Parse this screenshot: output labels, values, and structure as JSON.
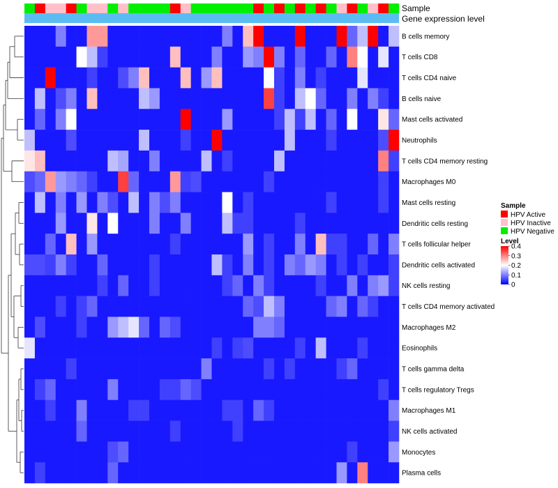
{
  "chart_data": {
    "type": "heatmap",
    "annotation_titles": [
      "Sample",
      "Gene expression level"
    ],
    "legend": {
      "sample": {
        "title": "Sample",
        "entries": [
          {
            "label": "HPV Active",
            "color": "#ff0000"
          },
          {
            "label": "HPV Inactive",
            "color": "#ffc0cb"
          },
          {
            "label": "HPV Negative",
            "color": "#00ee00"
          }
        ]
      },
      "level": {
        "title": "Level",
        "ticks": [
          "0.4",
          "0.3",
          "0.2",
          "0.1",
          "0"
        ],
        "tick_values": [
          0.4,
          0.3,
          0.2,
          0.1,
          0
        ],
        "range": [
          0,
          0.4
        ],
        "colors": [
          "#0000ff",
          "#ffffff",
          "#ff0000"
        ],
        "mid": 0.2
      }
    },
    "gene_expression_color": "#5bbcf2",
    "columns": 36,
    "sample_groups": [
      "HPV Negative",
      "HPV Active",
      "HPV Inactive",
      "HPV Inactive",
      "HPV Active",
      "HPV Negative",
      "HPV Inactive",
      "HPV Inactive",
      "HPV Negative",
      "HPV Inactive",
      "HPV Negative",
      "HPV Negative",
      "HPV Negative",
      "HPV Negative",
      "HPV Active",
      "HPV Inactive",
      "HPV Negative",
      "HPV Negative",
      "HPV Negative",
      "HPV Negative",
      "HPV Negative",
      "HPV Negative",
      "HPV Active",
      "HPV Negative",
      "HPV Active",
      "HPV Negative",
      "HPV Active",
      "HPV Negative",
      "HPV Active",
      "HPV Negative",
      "HPV Inactive",
      "HPV Active",
      "HPV Negative",
      "HPV Inactive",
      "HPV Active",
      "HPV Negative"
    ],
    "rows": [
      {
        "label": "B cells memory",
        "values": [
          0.02,
          0.02,
          0.02,
          0.1,
          0.02,
          0.02,
          0.28,
          0.28,
          0.02,
          0.02,
          0.02,
          0.02,
          0.02,
          0.02,
          0.02,
          0.02,
          0.02,
          0.02,
          0.02,
          0.1,
          0.02,
          0.25,
          0.4,
          0.02,
          0.02,
          0.02,
          0.4,
          0.02,
          0.02,
          0.02,
          0.4,
          0.08,
          0.15,
          0.4,
          0.02,
          0.15
        ]
      },
      {
        "label": "T cells CD8",
        "values": [
          0.02,
          0.02,
          0.02,
          0.02,
          0.02,
          0.2,
          0.15,
          0.05,
          0.02,
          0.02,
          0.02,
          0.02,
          0.02,
          0.02,
          0.25,
          0.02,
          0.02,
          0.02,
          0.1,
          0.02,
          0.02,
          0.12,
          0.1,
          0.4,
          0.1,
          0.02,
          0.08,
          0.02,
          0.02,
          0.08,
          0.02,
          0.3,
          0.2,
          0.02,
          0.18,
          0.02
        ]
      },
      {
        "label": "T cells CD4 naive",
        "values": [
          0.02,
          0.02,
          0.4,
          0.02,
          0.02,
          0.02,
          0.05,
          0.02,
          0.02,
          0.06,
          0.1,
          0.25,
          0.02,
          0.02,
          0.02,
          0.25,
          0.02,
          0.12,
          0.25,
          0.02,
          0.02,
          0.02,
          0.02,
          0.2,
          0.05,
          0.02,
          0.1,
          0.02,
          0.05,
          0.02,
          0.02,
          0.02,
          0.18,
          0.02,
          0.02,
          0.02
        ]
      },
      {
        "label": "B cells naive",
        "values": [
          0.02,
          0.15,
          0.02,
          0.06,
          0.1,
          0.02,
          0.25,
          0.02,
          0.02,
          0.02,
          0.02,
          0.15,
          0.12,
          0.02,
          0.02,
          0.02,
          0.02,
          0.02,
          0.02,
          0.02,
          0.02,
          0.02,
          0.02,
          0.35,
          0.05,
          0.02,
          0.15,
          0.2,
          0.08,
          0.02,
          0.02,
          0.1,
          0.02,
          0.1,
          0.05,
          0.02
        ]
      },
      {
        "label": "Mast cells activated",
        "values": [
          0.02,
          0.08,
          0.02,
          0.1,
          0.2,
          0.02,
          0.02,
          0.02,
          0.02,
          0.02,
          0.02,
          0.02,
          0.02,
          0.02,
          0.02,
          0.4,
          0.02,
          0.02,
          0.02,
          0.12,
          0.02,
          0.02,
          0.02,
          0.02,
          0.05,
          0.15,
          0.05,
          0.15,
          0.02,
          0.08,
          0.02,
          0.2,
          0.02,
          0.02,
          0.22,
          0.08
        ]
      },
      {
        "label": "Neutrophils",
        "values": [
          0.15,
          0.02,
          0.02,
          0.02,
          0.06,
          0.02,
          0.02,
          0.02,
          0.02,
          0.02,
          0.02,
          0.15,
          0.02,
          0.02,
          0.02,
          0.05,
          0.02,
          0.02,
          0.4,
          0.02,
          0.02,
          0.02,
          0.02,
          0.02,
          0.02,
          0.15,
          0.02,
          0.02,
          0.02,
          0.05,
          0.02,
          0.02,
          0.02,
          0.02,
          0.06,
          0.4
        ]
      },
      {
        "label": "T cells CD4 memory resting",
        "values": [
          0.22,
          0.25,
          0.02,
          0.02,
          0.02,
          0.02,
          0.02,
          0.02,
          0.15,
          0.13,
          0.02,
          0.02,
          0.1,
          0.02,
          0.02,
          0.02,
          0.02,
          0.15,
          0.02,
          0.05,
          0.02,
          0.02,
          0.02,
          0.02,
          0.15,
          0.02,
          0.02,
          0.02,
          0.02,
          0.02,
          0.02,
          0.02,
          0.02,
          0.02,
          0.3,
          0.05
        ]
      },
      {
        "label": "Macrophages M0",
        "values": [
          0.06,
          0.08,
          0.28,
          0.12,
          0.1,
          0.08,
          0.05,
          0.02,
          0.02,
          0.35,
          0.08,
          0.02,
          0.02,
          0.02,
          0.28,
          0.05,
          0.06,
          0.02,
          0.02,
          0.02,
          0.02,
          0.02,
          0.02,
          0.05,
          0.02,
          0.02,
          0.02,
          0.02,
          0.02,
          0.02,
          0.02,
          0.02,
          0.02,
          0.02,
          0.05,
          0.02
        ]
      },
      {
        "label": "Mast cells resting",
        "values": [
          0.02,
          0.15,
          0.02,
          0.1,
          0.02,
          0.12,
          0.02,
          0.1,
          0.06,
          0.02,
          0.15,
          0.02,
          0.1,
          0.06,
          0.1,
          0.02,
          0.02,
          0.02,
          0.02,
          0.2,
          0.02,
          0.05,
          0.02,
          0.02,
          0.02,
          0.02,
          0.02,
          0.02,
          0.02,
          0.05,
          0.02,
          0.02,
          0.02,
          0.02,
          0.05,
          0.02
        ]
      },
      {
        "label": "Dendritic cells resting",
        "values": [
          0.02,
          0.02,
          0.02,
          0.12,
          0.02,
          0.02,
          0.22,
          0.02,
          0.2,
          0.02,
          0.02,
          0.02,
          0.1,
          0.02,
          0.02,
          0.1,
          0.02,
          0.02,
          0.02,
          0.15,
          0.05,
          0.05,
          0.02,
          0.02,
          0.02,
          0.02,
          0.05,
          0.02,
          0.02,
          0.02,
          0.02,
          0.02,
          0.02,
          0.02,
          0.02,
          0.02
        ]
      },
      {
        "label": "T cells follicular helper",
        "values": [
          0.02,
          0.02,
          0.08,
          0.02,
          0.25,
          0.02,
          0.12,
          0.02,
          0.02,
          0.02,
          0.02,
          0.02,
          0.02,
          0.02,
          0.05,
          0.02,
          0.02,
          0.02,
          0.02,
          0.02,
          0.02,
          0.12,
          0.02,
          0.05,
          0.02,
          0.02,
          0.1,
          0.02,
          0.25,
          0.05,
          0.05,
          0.02,
          0.02,
          0.08,
          0.02,
          0.1
        ]
      },
      {
        "label": "Dendritic cells activated",
        "values": [
          0.06,
          0.06,
          0.05,
          0.1,
          0.05,
          0.02,
          0.02,
          0.08,
          0.02,
          0.02,
          0.02,
          0.02,
          0.05,
          0.02,
          0.02,
          0.02,
          0.02,
          0.02,
          0.15,
          0.05,
          0.02,
          0.1,
          0.02,
          0.05,
          0.02,
          0.1,
          0.08,
          0.12,
          0.1,
          0.02,
          0.05,
          0.02,
          0.05,
          0.02,
          0.02,
          0.05
        ]
      },
      {
        "label": "NK cells resting",
        "values": [
          0.02,
          0.02,
          0.02,
          0.02,
          0.02,
          0.02,
          0.02,
          0.05,
          0.02,
          0.08,
          0.02,
          0.02,
          0.05,
          0.02,
          0.02,
          0.02,
          0.02,
          0.02,
          0.02,
          0.05,
          0.08,
          0.02,
          0.1,
          0.05,
          0.02,
          0.02,
          0.02,
          0.02,
          0.05,
          0.02,
          0.02,
          0.1,
          0.02,
          0.1,
          0.12,
          0.05
        ]
      },
      {
        "label": "T cells CD4 memory activated",
        "values": [
          0.02,
          0.02,
          0.02,
          0.05,
          0.02,
          0.05,
          0.08,
          0.02,
          0.02,
          0.02,
          0.02,
          0.02,
          0.02,
          0.02,
          0.02,
          0.02,
          0.02,
          0.02,
          0.02,
          0.02,
          0.02,
          0.08,
          0.06,
          0.15,
          0.1,
          0.02,
          0.02,
          0.02,
          0.02,
          0.08,
          0.1,
          0.02,
          0.08,
          0.05,
          0.02,
          0.02
        ]
      },
      {
        "label": "Macrophages M2",
        "values": [
          0.02,
          0.06,
          0.02,
          0.02,
          0.02,
          0.05,
          0.02,
          0.02,
          0.12,
          0.15,
          0.18,
          0.08,
          0.02,
          0.08,
          0.06,
          0.02,
          0.02,
          0.02,
          0.02,
          0.02,
          0.02,
          0.02,
          0.1,
          0.1,
          0.08,
          0.02,
          0.02,
          0.02,
          0.02,
          0.02,
          0.02,
          0.02,
          0.02,
          0.02,
          0.02,
          0.02
        ]
      },
      {
        "label": "Eosinophils",
        "values": [
          0.18,
          0.02,
          0.02,
          0.02,
          0.02,
          0.02,
          0.02,
          0.02,
          0.02,
          0.02,
          0.02,
          0.02,
          0.02,
          0.02,
          0.02,
          0.02,
          0.02,
          0.02,
          0.05,
          0.02,
          0.05,
          0.06,
          0.02,
          0.02,
          0.02,
          0.02,
          0.05,
          0.02,
          0.15,
          0.02,
          0.02,
          0.02,
          0.05,
          0.02,
          0.02,
          0.02
        ]
      },
      {
        "label": "T cells gamma delta",
        "values": [
          0.02,
          0.02,
          0.02,
          0.02,
          0.05,
          0.02,
          0.02,
          0.02,
          0.02,
          0.02,
          0.02,
          0.02,
          0.02,
          0.02,
          0.02,
          0.02,
          0.02,
          0.1,
          0.02,
          0.02,
          0.02,
          0.02,
          0.02,
          0.05,
          0.02,
          0.05,
          0.02,
          0.02,
          0.02,
          0.02,
          0.05,
          0.08,
          0.02,
          0.02,
          0.02,
          0.02
        ]
      },
      {
        "label": "T cells regulatory  Tregs",
        "values": [
          0.02,
          0.05,
          0.08,
          0.02,
          0.02,
          0.02,
          0.02,
          0.02,
          0.1,
          0.02,
          0.02,
          0.02,
          0.02,
          0.05,
          0.05,
          0.08,
          0.06,
          0.02,
          0.02,
          0.02,
          0.02,
          0.02,
          0.02,
          0.02,
          0.02,
          0.02,
          0.02,
          0.02,
          0.02,
          0.02,
          0.02,
          0.02,
          0.02,
          0.02,
          0.05,
          0.02
        ]
      },
      {
        "label": "Macrophages M1",
        "values": [
          0.02,
          0.02,
          0.05,
          0.02,
          0.02,
          0.1,
          0.02,
          0.02,
          0.02,
          0.02,
          0.05,
          0.05,
          0.02,
          0.02,
          0.02,
          0.02,
          0.02,
          0.02,
          0.02,
          0.05,
          0.05,
          0.02,
          0.08,
          0.05,
          0.02,
          0.02,
          0.02,
          0.02,
          0.02,
          0.02,
          0.02,
          0.02,
          0.02,
          0.02,
          0.02,
          0.1
        ]
      },
      {
        "label": "NK cells activated",
        "values": [
          0.02,
          0.02,
          0.02,
          0.02,
          0.02,
          0.08,
          0.02,
          0.02,
          0.02,
          0.02,
          0.02,
          0.02,
          0.02,
          0.02,
          0.05,
          0.02,
          0.02,
          0.02,
          0.02,
          0.02,
          0.05,
          0.02,
          0.02,
          0.02,
          0.02,
          0.02,
          0.02,
          0.02,
          0.02,
          0.02,
          0.02,
          0.02,
          0.02,
          0.02,
          0.02,
          0.05
        ]
      },
      {
        "label": "Monocytes",
        "values": [
          0.02,
          0.02,
          0.02,
          0.02,
          0.02,
          0.02,
          0.02,
          0.02,
          0.06,
          0.08,
          0.02,
          0.02,
          0.02,
          0.02,
          0.02,
          0.02,
          0.02,
          0.02,
          0.02,
          0.02,
          0.02,
          0.02,
          0.02,
          0.02,
          0.02,
          0.02,
          0.02,
          0.02,
          0.02,
          0.02,
          0.02,
          0.05,
          0.02,
          0.02,
          0.02,
          0.12
        ]
      },
      {
        "label": "Plasma cells",
        "values": [
          0.02,
          0.05,
          0.02,
          0.02,
          0.02,
          0.02,
          0.02,
          0.02,
          0.08,
          0.02,
          0.02,
          0.02,
          0.02,
          0.02,
          0.02,
          0.02,
          0.02,
          0.02,
          0.02,
          0.02,
          0.02,
          0.02,
          0.02,
          0.02,
          0.02,
          0.02,
          0.02,
          0.02,
          0.02,
          0.02,
          0.12,
          0.02,
          0.3,
          0.02,
          0.02,
          0.02
        ]
      }
    ]
  }
}
